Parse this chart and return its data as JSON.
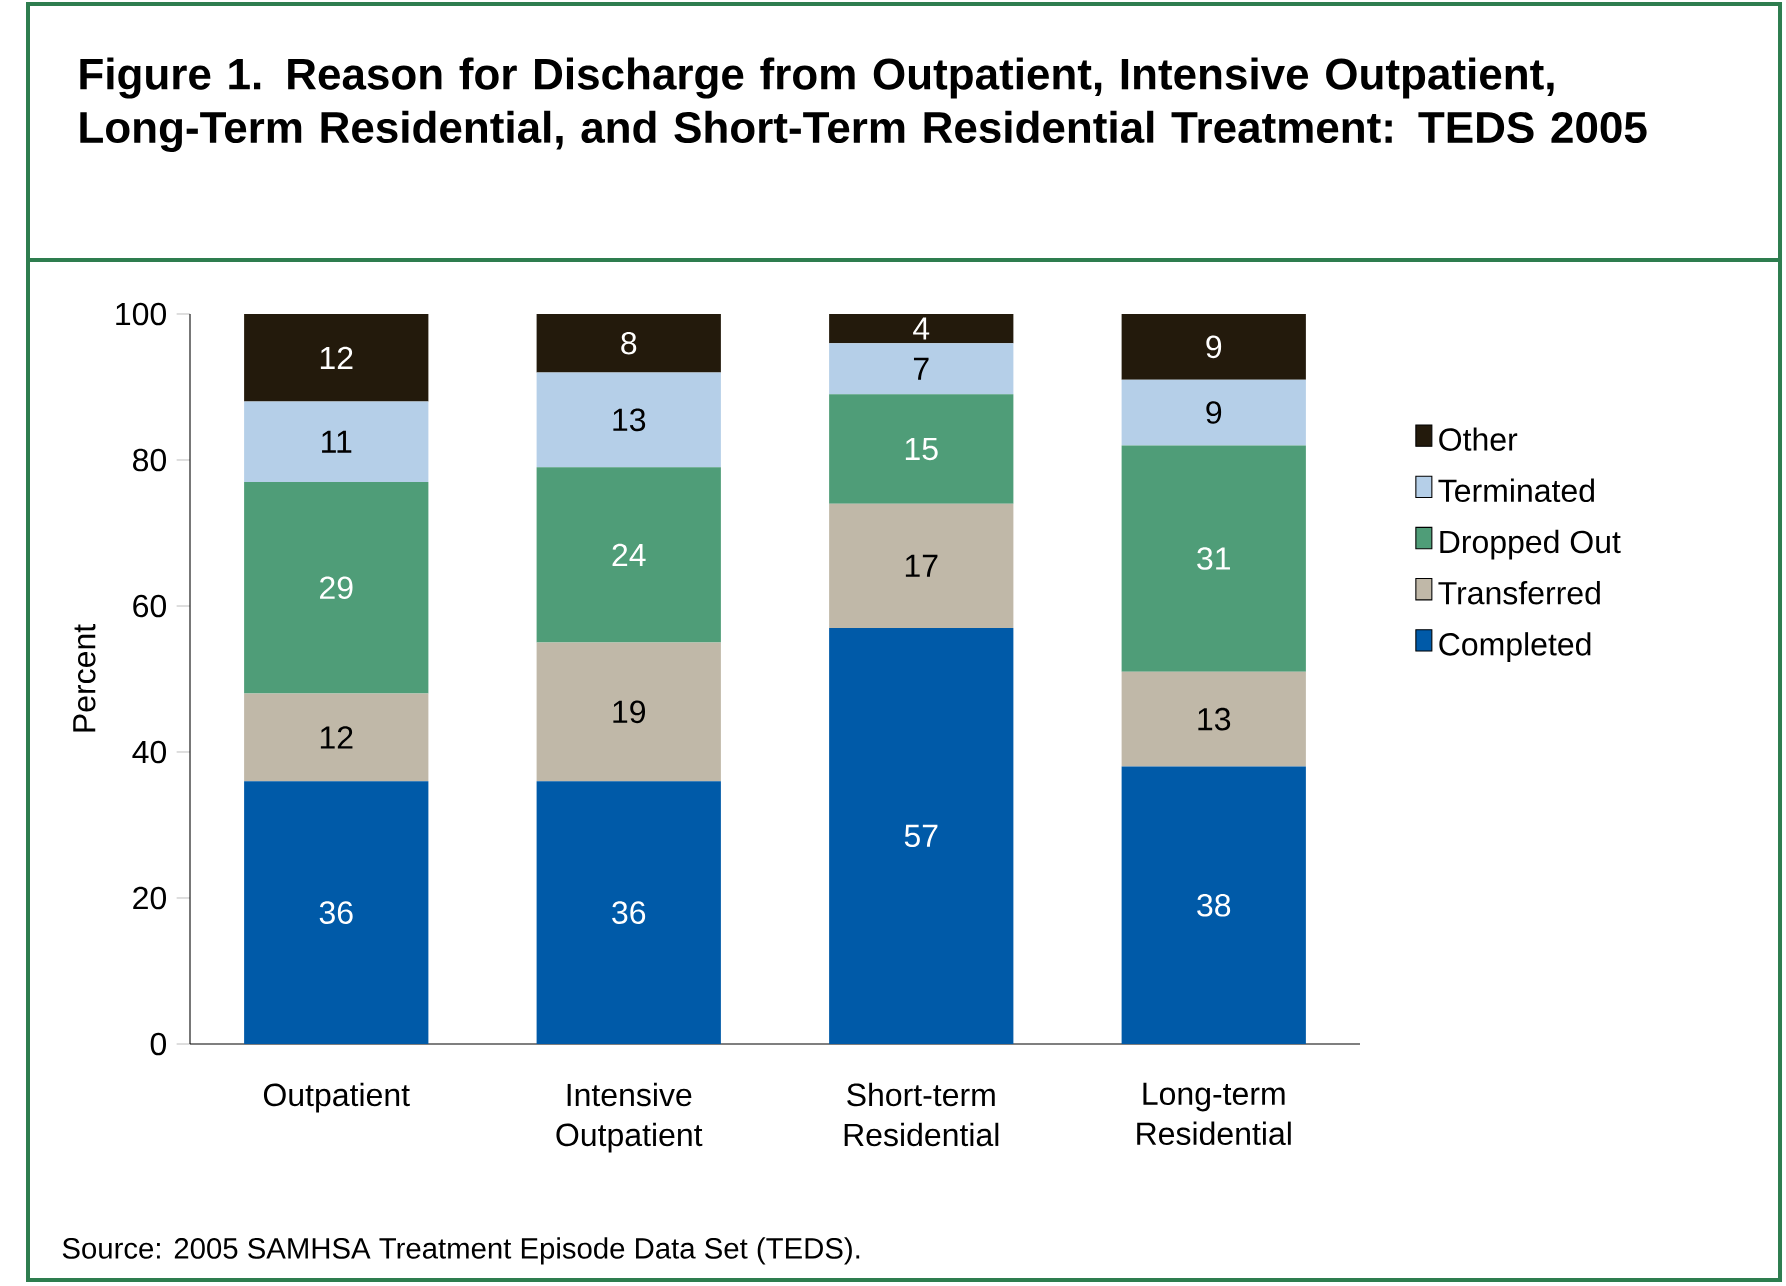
{
  "chart_data": {
    "type": "bar",
    "stacked": true,
    "title": "Figure 1. Reason for Discharge from Outpatient, Intensive Outpatient, Long-Term Residential, and Short-Term Residential Treatment: TEDS 2005",
    "ylabel": "Percent",
    "categories": [
      "Outpatient",
      "Intensive Outpatient",
      "Short-term Residential",
      "Long-term Residential"
    ],
    "series": [
      {
        "name": "Completed",
        "color": "#005aa8",
        "values": [
          36,
          36,
          57,
          38
        ]
      },
      {
        "name": "Transferred",
        "color": "#c0b8a8",
        "values": [
          12,
          19,
          17,
          13
        ]
      },
      {
        "name": "Dropped Out",
        "color": "#4f9d78",
        "values": [
          29,
          24,
          15,
          31
        ]
      },
      {
        "name": "Terminated",
        "color": "#b5cfe8",
        "values": [
          11,
          13,
          7,
          9
        ]
      },
      {
        "name": "Other",
        "color": "#231a0c",
        "values": [
          12,
          8,
          4,
          9
        ]
      }
    ],
    "ylim": [
      0,
      100
    ],
    "yticks": [
      0,
      20,
      40,
      60,
      80,
      100
    ],
    "data_labels": true,
    "legend": "right",
    "annotations": [
      "Source: 2005 SAMHSA Treatment Episode Data Set (TEDS)."
    ]
  }
}
